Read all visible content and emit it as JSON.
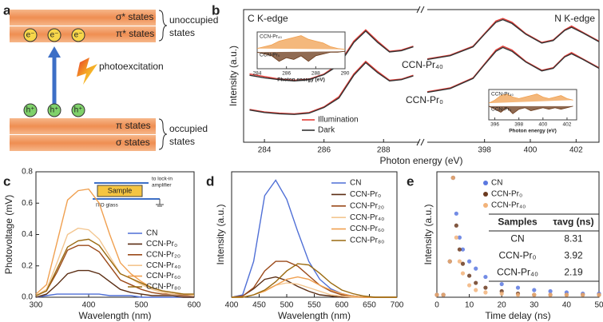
{
  "diagram": {
    "panel": "a",
    "upper_bands": [
      "σ* states",
      "π* states"
    ],
    "upper_label": [
      "unoccupied",
      "states"
    ],
    "electrons": [
      "e⁻",
      "e⁻",
      "e⁻"
    ],
    "excitation": "photoexcitation",
    "holes": [
      "h⁺",
      "h⁺",
      "h⁺"
    ],
    "lower_bands": [
      "π states",
      "σ states"
    ],
    "lower_label": [
      "occupied",
      "states"
    ]
  },
  "chart_data": [
    {
      "type": "line",
      "panel": "b",
      "title": "C K-edge",
      "ylabel": "Intensity (a.u.)",
      "xlabel": "Photon energy (eV)",
      "xlim": [
        283.3,
        289.2
      ],
      "xticks": [
        284,
        286,
        288
      ],
      "ylim": [
        0,
        10.5
      ],
      "legend": [
        {
          "name": "Illumination",
          "color": "#e23c36"
        },
        {
          "name": "Dark",
          "color": "#333333"
        }
      ],
      "x": [
        283.5,
        284,
        284.5,
        285,
        285.5,
        286,
        286.5,
        287,
        287.4,
        287.8,
        288.2,
        288.6,
        289
      ],
      "groups": [
        {
          "label": "CCN-Pr₄₀",
          "label_color": "#e0604c",
          "lines": [
            [
              5.4,
              5.2,
              5.0,
              4.9,
              5.0,
              5.4,
              6.2,
              8.0,
              8.9,
              8.0,
              7.2,
              7.3,
              7.6
            ],
            [
              5.3,
              5.1,
              4.95,
              4.85,
              4.95,
              5.35,
              6.1,
              7.9,
              8.8,
              7.9,
              7.15,
              7.25,
              7.55
            ]
          ]
        },
        {
          "label": "CCN-Pr₀",
          "label_color": "#5a2d1a",
          "lines": [
            [
              2.6,
              2.4,
              2.3,
              2.25,
              2.35,
              2.8,
              3.6,
              5.4,
              6.4,
              5.6,
              4.9,
              5.0,
              5.3
            ],
            [
              2.55,
              2.35,
              2.25,
              2.2,
              2.3,
              2.75,
              3.5,
              5.3,
              6.3,
              5.5,
              4.85,
              4.95,
              5.25
            ]
          ]
        }
      ],
      "inset": {
        "xlim": [
          284,
          290
        ],
        "xticks": [
          284,
          286,
          288,
          290
        ],
        "ylim": [
          -1,
          1
        ],
        "xlabel": "Photon energy (eV)",
        "x": [
          284,
          284.5,
          285,
          285.5,
          286,
          286.5,
          287,
          287.5,
          288,
          288.5,
          289,
          289.5,
          290
        ],
        "series": [
          {
            "name": "CCN-Pr₄₀",
            "color": "#f0a050",
            "values": [
              0.1,
              0.2,
              0.3,
              0.5,
              0.6,
              0.7,
              0.8,
              0.6,
              0.5,
              0.4,
              0.2,
              0.1,
              0.05
            ]
          },
          {
            "name": "CCN-Pr₀",
            "color": "#6b3a1a",
            "values": [
              -0.1,
              -0.2,
              -0.3,
              -0.6,
              -0.4,
              -0.5,
              -0.3,
              -0.6,
              -0.3,
              -0.2,
              -0.1,
              -0.1,
              -0.05
            ]
          }
        ]
      }
    },
    {
      "type": "line",
      "title": "N K-edge",
      "xlim": [
        395.5,
        403
      ],
      "xticks": [
        398,
        400,
        402
      ],
      "ylim": [
        0,
        10.5
      ],
      "x": [
        395.5,
        396.5,
        397.5,
        398,
        398.5,
        398.8,
        399.2,
        399.8,
        400.5,
        401,
        401.5,
        401.8,
        402.3,
        403
      ],
      "groups": [
        {
          "lines": [
            [
              6.6,
              6.9,
              7.6,
              8.6,
              9.6,
              9.8,
              9.5,
              8.6,
              7.9,
              8.1,
              8.9,
              9.2,
              8.7,
              8.0
            ],
            [
              6.55,
              6.85,
              7.55,
              8.55,
              9.5,
              9.7,
              9.4,
              8.55,
              7.85,
              8.05,
              8.85,
              9.1,
              8.65,
              7.95
            ]
          ]
        },
        {
          "lines": [
            [
              4.0,
              4.3,
              5.1,
              6.2,
              7.3,
              7.6,
              7.3,
              6.4,
              5.7,
              5.9,
              6.8,
              7.1,
              6.6,
              5.9
            ],
            [
              3.95,
              4.25,
              5.05,
              6.15,
              7.2,
              7.5,
              7.2,
              6.35,
              5.65,
              5.85,
              6.75,
              7.0,
              6.55,
              5.85
            ]
          ]
        }
      ],
      "inset": {
        "xlim": [
          395.5,
          402.8
        ],
        "xticks": [
          396,
          398,
          400,
          402
        ],
        "ylim": [
          -1,
          1
        ],
        "xlabel": "Photon energy (eV)",
        "x": [
          395.5,
          396,
          396.5,
          397,
          397.5,
          398,
          398.5,
          399,
          399.5,
          400,
          400.5,
          401,
          401.5,
          402,
          402.5
        ],
        "series": [
          {
            "name": "CCN-Pr₄₀",
            "color": "#f0a050",
            "values": [
              0.1,
              0.3,
              0.6,
              0.7,
              0.5,
              0.4,
              0.5,
              0.6,
              0.7,
              0.5,
              0.4,
              0.5,
              0.6,
              0.4,
              0.3
            ]
          },
          {
            "name": "CCN-Pr₀",
            "color": "#6b3a1a",
            "values": [
              -0.1,
              -0.3,
              -0.5,
              -0.2,
              -0.6,
              -0.3,
              -0.2,
              -0.4,
              -0.3,
              -0.2,
              -0.3,
              -0.2,
              -0.3,
              -0.2,
              -0.1
            ]
          }
        ]
      }
    },
    {
      "type": "line",
      "panel": "c",
      "ylabel": "Photovoltage (mV)",
      "xlabel": "Wavelength (nm)",
      "xlim": [
        300,
        600
      ],
      "xticks": [
        300,
        400,
        500,
        600
      ],
      "ylim": [
        0,
        0.8
      ],
      "yticks": [
        {
          "value": 0,
          "label": "0.0"
        },
        0.2,
        0.4,
        0.6,
        0.8
      ],
      "x": [
        300,
        320,
        340,
        360,
        380,
        400,
        420,
        440,
        460,
        480,
        500,
        520,
        540,
        560,
        580,
        600
      ],
      "series": [
        {
          "name": "CN",
          "color": "#4f6fd6",
          "values": [
            0.0,
            0.01,
            0.02,
            0.02,
            0.02,
            0.02,
            0.02,
            0.01,
            0.01,
            0.01,
            0.0,
            0.0,
            0.0,
            0.0,
            0.0,
            0.0
          ]
        },
        {
          "name": "CCN-Pr₀",
          "color": "#5b2e14",
          "values": [
            0.0,
            0.02,
            0.08,
            0.15,
            0.17,
            0.17,
            0.15,
            0.1,
            0.05,
            0.03,
            0.02,
            0.01,
            0.01,
            0.01,
            0.0,
            0.0
          ]
        },
        {
          "name": "CCN-Pr₂₀",
          "color": "#9b4a1a",
          "values": [
            0.01,
            0.04,
            0.16,
            0.3,
            0.33,
            0.33,
            0.29,
            0.2,
            0.11,
            0.08,
            0.05,
            0.03,
            0.02,
            0.02,
            0.01,
            0.01
          ]
        },
        {
          "name": "CCN-Pr₄₀",
          "color": "#f3c690",
          "values": [
            0.01,
            0.05,
            0.22,
            0.4,
            0.44,
            0.43,
            0.37,
            0.26,
            0.15,
            0.12,
            0.08,
            0.05,
            0.03,
            0.02,
            0.02,
            0.01
          ]
        },
        {
          "name": "CCN-Pr₆₀",
          "color": "#f0a050",
          "values": [
            0.02,
            0.08,
            0.35,
            0.62,
            0.68,
            0.69,
            0.6,
            0.4,
            0.22,
            0.15,
            0.1,
            0.06,
            0.04,
            0.03,
            0.02,
            0.02
          ]
        },
        {
          "name": "CCN-Pr₈₀",
          "color": "#9a6a10",
          "values": [
            0.01,
            0.04,
            0.18,
            0.32,
            0.36,
            0.37,
            0.33,
            0.24,
            0.15,
            0.12,
            0.09,
            0.06,
            0.04,
            0.03,
            0.02,
            0.02
          ]
        }
      ],
      "schematic": {
        "sample": "Sample",
        "output": [
          "to lock-in",
          "amplifier"
        ],
        "substrate": "ITO glass"
      }
    },
    {
      "type": "line",
      "panel": "d",
      "ylabel": "Intensity (a.u.)",
      "xlabel": "Wavelength (nm)",
      "xlim": [
        400,
        700
      ],
      "xticks": [
        400,
        450,
        500,
        550,
        600,
        650,
        700
      ],
      "ylim": [
        0,
        1.05
      ],
      "x": [
        400,
        420,
        440,
        460,
        480,
        500,
        520,
        540,
        560,
        580,
        600,
        620,
        640,
        660,
        680,
        700
      ],
      "series": [
        {
          "name": "CN",
          "color": "#4f6fd6",
          "values": [
            0.0,
            0.02,
            0.3,
            0.85,
            0.98,
            0.82,
            0.55,
            0.3,
            0.15,
            0.07,
            0.03,
            0.01,
            0.0,
            0.0,
            0.0,
            0.0
          ]
        },
        {
          "name": "CCN-Pr₀",
          "color": "#5b2e14",
          "values": [
            0.0,
            0.01,
            0.07,
            0.15,
            0.17,
            0.14,
            0.09,
            0.05,
            0.02,
            0.01,
            0.0,
            0.0,
            0.0,
            0.0,
            0.0,
            0.0
          ]
        },
        {
          "name": "CCN-Pr₂₀",
          "color": "#9b4a1a",
          "values": [
            0.0,
            0.01,
            0.08,
            0.22,
            0.3,
            0.3,
            0.26,
            0.18,
            0.1,
            0.05,
            0.02,
            0.01,
            0.0,
            0.0,
            0.0,
            0.0
          ]
        },
        {
          "name": "CCN-Pr₄₀",
          "color": "#f3c690",
          "values": [
            0.0,
            0.0,
            0.02,
            0.06,
            0.1,
            0.12,
            0.11,
            0.08,
            0.05,
            0.02,
            0.01,
            0.0,
            0.0,
            0.0,
            0.0,
            0.0
          ]
        },
        {
          "name": "CCN-Pr₆₀",
          "color": "#f0a050",
          "values": [
            0.0,
            0.0,
            0.02,
            0.05,
            0.1,
            0.15,
            0.17,
            0.15,
            0.1,
            0.06,
            0.03,
            0.01,
            0.0,
            0.0,
            0.0,
            0.0
          ]
        },
        {
          "name": "CCN-Pr₈₀",
          "color": "#9a6a10",
          "values": [
            0.0,
            0.0,
            0.02,
            0.06,
            0.13,
            0.22,
            0.28,
            0.27,
            0.2,
            0.12,
            0.06,
            0.03,
            0.01,
            0.0,
            0.0,
            0.0
          ]
        }
      ]
    },
    {
      "type": "scatter",
      "panel": "e",
      "ylabel": "Intensity (a.u.)",
      "xlabel": "Time delay (ns)",
      "xlim": [
        0,
        50
      ],
      "xticks": [
        0,
        10,
        20,
        30,
        40,
        50
      ],
      "ylim": [
        0,
        1.05
      ],
      "x": [
        0,
        2,
        4,
        5,
        6,
        7,
        8,
        10,
        12,
        15,
        20,
        25,
        30,
        35,
        40,
        45,
        50
      ],
      "series": [
        {
          "name": "CN",
          "color": "#5b78e0",
          "values": [
            0.02,
            0.02,
            0.3,
            1.0,
            0.7,
            0.5,
            0.4,
            0.3,
            0.24,
            0.17,
            0.11,
            0.08,
            0.06,
            0.05,
            0.04,
            0.03,
            0.03
          ]
        },
        {
          "name": "CCN-Pr₀",
          "color": "#6b3a1f",
          "values": [
            0.02,
            0.02,
            0.3,
            1.0,
            0.6,
            0.4,
            0.28,
            0.18,
            0.12,
            0.08,
            0.05,
            0.03,
            0.02,
            0.02,
            0.02,
            0.02,
            0.02
          ]
        },
        {
          "name": "CCN-Pr₄₀",
          "color": "#f2b37a",
          "values": [
            0.02,
            0.02,
            0.3,
            1.0,
            0.5,
            0.3,
            0.2,
            0.1,
            0.06,
            0.04,
            0.03,
            0.02,
            0.02,
            0.02,
            0.02,
            0.02,
            0.02
          ]
        }
      ],
      "table": {
        "columns": [
          "Samples",
          "τavg (ns)"
        ],
        "rows": [
          [
            "CN",
            "8.31"
          ],
          [
            "CCN-Pr₀",
            "3.92"
          ],
          [
            "CCN-Pr₄₀",
            "2.19"
          ]
        ]
      }
    }
  ]
}
